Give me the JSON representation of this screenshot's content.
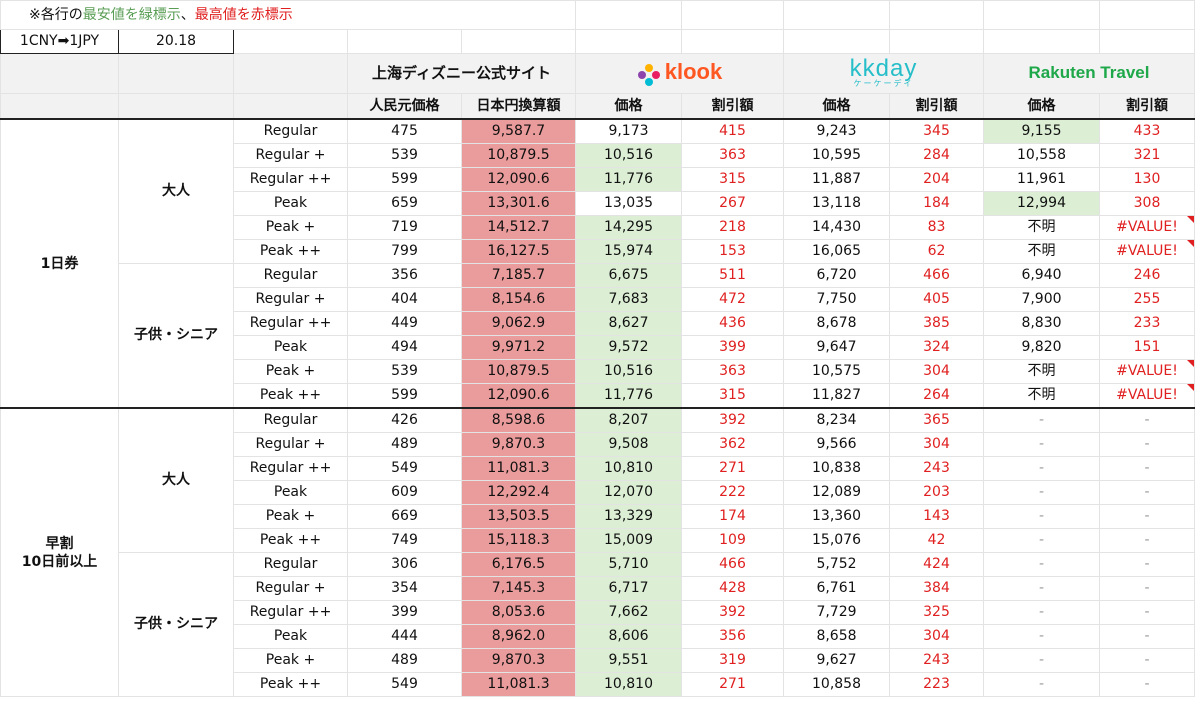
{
  "note": {
    "prefix": "※各行の",
    "green": "最安値を緑標示",
    "sep": "、",
    "red": "最高値を赤標示"
  },
  "rate": {
    "label": "1CNY➡1JPY",
    "value": "20.18"
  },
  "header": {
    "official": "上海ディズニー公式サイト",
    "klook": "klook",
    "kkday": "kkday",
    "kkday_sub": "ケーケーデイ",
    "rakuten": "Rakuten Travel",
    "cny_price": "人民元価格",
    "jpy_conv": "日本円換算額",
    "price": "価格",
    "discount": "割引額"
  },
  "sections": [
    {
      "name": "1日券",
      "groups": [
        {
          "name": "大人",
          "rows": [
            {
              "tier": "Regular",
              "cny": "475",
              "jpy": "9,587.7",
              "klook": "9,173",
              "klook_d": "415",
              "kkday": "9,243",
              "kkday_d": "345",
              "rak": "9,155",
              "rak_d": "433",
              "low": "rak"
            },
            {
              "tier": "Regular +",
              "cny": "539",
              "jpy": "10,879.5",
              "klook": "10,516",
              "klook_d": "363",
              "kkday": "10,595",
              "kkday_d": "284",
              "rak": "10,558",
              "rak_d": "321",
              "low": "klook"
            },
            {
              "tier": "Regular ++",
              "cny": "599",
              "jpy": "12,090.6",
              "klook": "11,776",
              "klook_d": "315",
              "kkday": "11,887",
              "kkday_d": "204",
              "rak": "11,961",
              "rak_d": "130",
              "low": "klook"
            },
            {
              "tier": "Peak",
              "cny": "659",
              "jpy": "13,301.6",
              "klook": "13,035",
              "klook_d": "267",
              "kkday": "13,118",
              "kkday_d": "184",
              "rak": "12,994",
              "rak_d": "308",
              "low": "rak"
            },
            {
              "tier": "Peak +",
              "cny": "719",
              "jpy": "14,512.7",
              "klook": "14,295",
              "klook_d": "218",
              "kkday": "14,430",
              "kkday_d": "83",
              "rak": "不明",
              "rak_d": "#VALUE!",
              "low": "klook",
              "flag": true
            },
            {
              "tier": "Peak ++",
              "cny": "799",
              "jpy": "16,127.5",
              "klook": "15,974",
              "klook_d": "153",
              "kkday": "16,065",
              "kkday_d": "62",
              "rak": "不明",
              "rak_d": "#VALUE!",
              "low": "klook",
              "flag": true
            }
          ]
        },
        {
          "name": "子供・シニア",
          "rows": [
            {
              "tier": "Regular",
              "cny": "356",
              "jpy": "7,185.7",
              "klook": "6,675",
              "klook_d": "511",
              "kkday": "6,720",
              "kkday_d": "466",
              "rak": "6,940",
              "rak_d": "246",
              "low": "klook"
            },
            {
              "tier": "Regular +",
              "cny": "404",
              "jpy": "8,154.6",
              "klook": "7,683",
              "klook_d": "472",
              "kkday": "7,750",
              "kkday_d": "405",
              "rak": "7,900",
              "rak_d": "255",
              "low": "klook"
            },
            {
              "tier": "Regular ++",
              "cny": "449",
              "jpy": "9,062.9",
              "klook": "8,627",
              "klook_d": "436",
              "kkday": "8,678",
              "kkday_d": "385",
              "rak": "8,830",
              "rak_d": "233",
              "low": "klook"
            },
            {
              "tier": "Peak",
              "cny": "494",
              "jpy": "9,971.2",
              "klook": "9,572",
              "klook_d": "399",
              "kkday": "9,647",
              "kkday_d": "324",
              "rak": "9,820",
              "rak_d": "151",
              "low": "klook"
            },
            {
              "tier": "Peak +",
              "cny": "539",
              "jpy": "10,879.5",
              "klook": "10,516",
              "klook_d": "363",
              "kkday": "10,575",
              "kkday_d": "304",
              "rak": "不明",
              "rak_d": "#VALUE!",
              "low": "klook",
              "flag": true
            },
            {
              "tier": "Peak ++",
              "cny": "599",
              "jpy": "12,090.6",
              "klook": "11,776",
              "klook_d": "315",
              "kkday": "11,827",
              "kkday_d": "264",
              "rak": "不明",
              "rak_d": "#VALUE!",
              "low": "klook",
              "flag": true
            }
          ]
        }
      ]
    },
    {
      "name": "早割\n10日前以上",
      "groups": [
        {
          "name": "大人",
          "rows": [
            {
              "tier": "Regular",
              "cny": "426",
              "jpy": "8,598.6",
              "klook": "8,207",
              "klook_d": "392",
              "kkday": "8,234",
              "kkday_d": "365",
              "rak": "-",
              "rak_d": "-",
              "low": "klook"
            },
            {
              "tier": "Regular +",
              "cny": "489",
              "jpy": "9,870.3",
              "klook": "9,508",
              "klook_d": "362",
              "kkday": "9,566",
              "kkday_d": "304",
              "rak": "-",
              "rak_d": "-",
              "low": "klook"
            },
            {
              "tier": "Regular ++",
              "cny": "549",
              "jpy": "11,081.3",
              "klook": "10,810",
              "klook_d": "271",
              "kkday": "10,838",
              "kkday_d": "243",
              "rak": "-",
              "rak_d": "-",
              "low": "klook"
            },
            {
              "tier": "Peak",
              "cny": "609",
              "jpy": "12,292.4",
              "klook": "12,070",
              "klook_d": "222",
              "kkday": "12,089",
              "kkday_d": "203",
              "rak": "-",
              "rak_d": "-",
              "low": "klook"
            },
            {
              "tier": "Peak +",
              "cny": "669",
              "jpy": "13,503.5",
              "klook": "13,329",
              "klook_d": "174",
              "kkday": "13,360",
              "kkday_d": "143",
              "rak": "-",
              "rak_d": "-",
              "low": "klook"
            },
            {
              "tier": "Peak ++",
              "cny": "749",
              "jpy": "15,118.3",
              "klook": "15,009",
              "klook_d": "109",
              "kkday": "15,076",
              "kkday_d": "42",
              "rak": "-",
              "rak_d": "-",
              "low": "klook"
            }
          ]
        },
        {
          "name": "子供・シニア",
          "rows": [
            {
              "tier": "Regular",
              "cny": "306",
              "jpy": "6,176.5",
              "klook": "5,710",
              "klook_d": "466",
              "kkday": "5,752",
              "kkday_d": "424",
              "rak": "-",
              "rak_d": "-",
              "low": "klook"
            },
            {
              "tier": "Regular +",
              "cny": "354",
              "jpy": "7,145.3",
              "klook": "6,717",
              "klook_d": "428",
              "kkday": "6,761",
              "kkday_d": "384",
              "rak": "-",
              "rak_d": "-",
              "low": "klook"
            },
            {
              "tier": "Regular ++",
              "cny": "399",
              "jpy": "8,053.6",
              "klook": "7,662",
              "klook_d": "392",
              "kkday": "7,729",
              "kkday_d": "325",
              "rak": "-",
              "rak_d": "-",
              "low": "klook"
            },
            {
              "tier": "Peak",
              "cny": "444",
              "jpy": "8,962.0",
              "klook": "8,606",
              "klook_d": "356",
              "kkday": "8,658",
              "kkday_d": "304",
              "rak": "-",
              "rak_d": "-",
              "low": "klook"
            },
            {
              "tier": "Peak +",
              "cny": "489",
              "jpy": "9,870.3",
              "klook": "9,551",
              "klook_d": "319",
              "kkday": "9,627",
              "kkday_d": "243",
              "rak": "-",
              "rak_d": "-",
              "low": "klook"
            },
            {
              "tier": "Peak ++",
              "cny": "549",
              "jpy": "11,081.3",
              "klook": "10,810",
              "klook_d": "271",
              "kkday": "10,858",
              "kkday_d": "223",
              "rak": "-",
              "rak_d": "-",
              "low": "klook"
            }
          ]
        }
      ]
    }
  ]
}
